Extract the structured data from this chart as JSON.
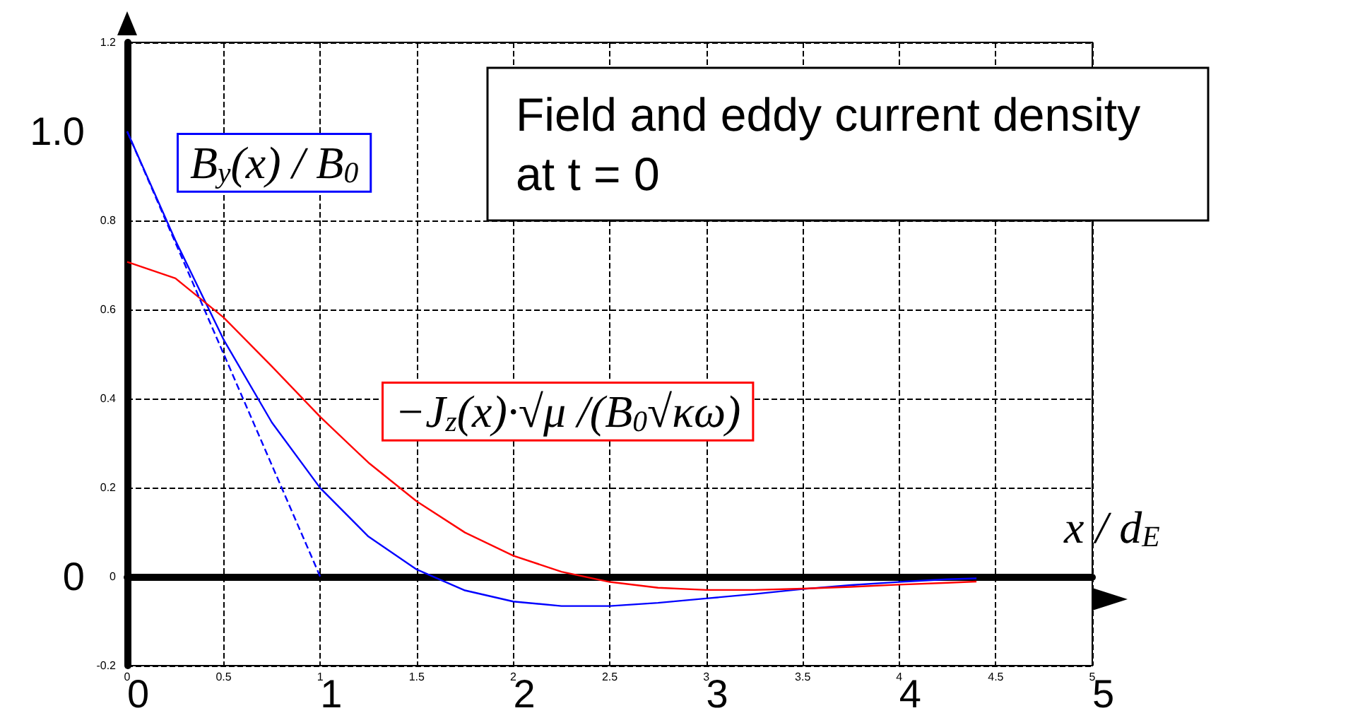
{
  "chart_data": {
    "type": "line",
    "title": "Field and eddy current density at t = 0",
    "x": [
      0,
      0.25,
      0.5,
      0.75,
      1,
      1.25,
      1.5,
      1.75,
      2,
      2.25,
      2.5,
      2.75,
      3,
      3.25,
      3.5,
      3.75,
      4,
      4.25,
      4.4
    ],
    "series": [
      {
        "color": "#0000ff",
        "values": [
          1,
          0.755,
          0.532,
          0.346,
          0.199,
          0.09,
          0.016,
          -0.031,
          -0.056,
          -0.066,
          -0.066,
          -0.059,
          -0.049,
          -0.039,
          -0.028,
          -0.019,
          -0.012,
          -0.006,
          -0.004
        ]
      },
      {
        "color": "#ff0000",
        "values": [
          0.707,
          0.67,
          0.582,
          0.472,
          0.359,
          0.256,
          0.169,
          0.099,
          0.047,
          0.011,
          -0.012,
          -0.025,
          -0.03,
          -0.03,
          -0.027,
          -0.023,
          -0.018,
          -0.014,
          -0.011
        ]
      },
      {
        "color": "#0000ff",
        "x": [
          0,
          1
        ],
        "values": [
          1,
          0
        ],
        "line_style": "dashed"
      }
    ],
    "annotations": [
      "B$_{y}$(x) / B$_{0}$",
      "−J$_{z}$(x)·√μ /(B$_{0}$√κω)"
    ],
    "xlim": [
      0,
      5
    ],
    "xticks": [
      0,
      0.5,
      1,
      1.5,
      2,
      2.5,
      3,
      3.5,
      4,
      4.5,
      5
    ],
    "ylim": [
      -0.2,
      1.2
    ],
    "yticks": [
      -0.2,
      0,
      0.2,
      0.4,
      0.6,
      0.8,
      1.2
    ],
    "x2lim": [
      0,
      5
    ],
    "x2ticks": [
      0,
      1,
      2,
      3,
      4,
      5
    ],
    "x2label": "x / d$_{E}$",
    "y2lim": [
      -0.2,
      1.2
    ],
    "y2ticks": [
      0,
      {
        "value": 1,
        "label": "1.0"
      }
    ],
    "grid": true,
    "marker": "none",
    "line_style": "solid"
  }
}
